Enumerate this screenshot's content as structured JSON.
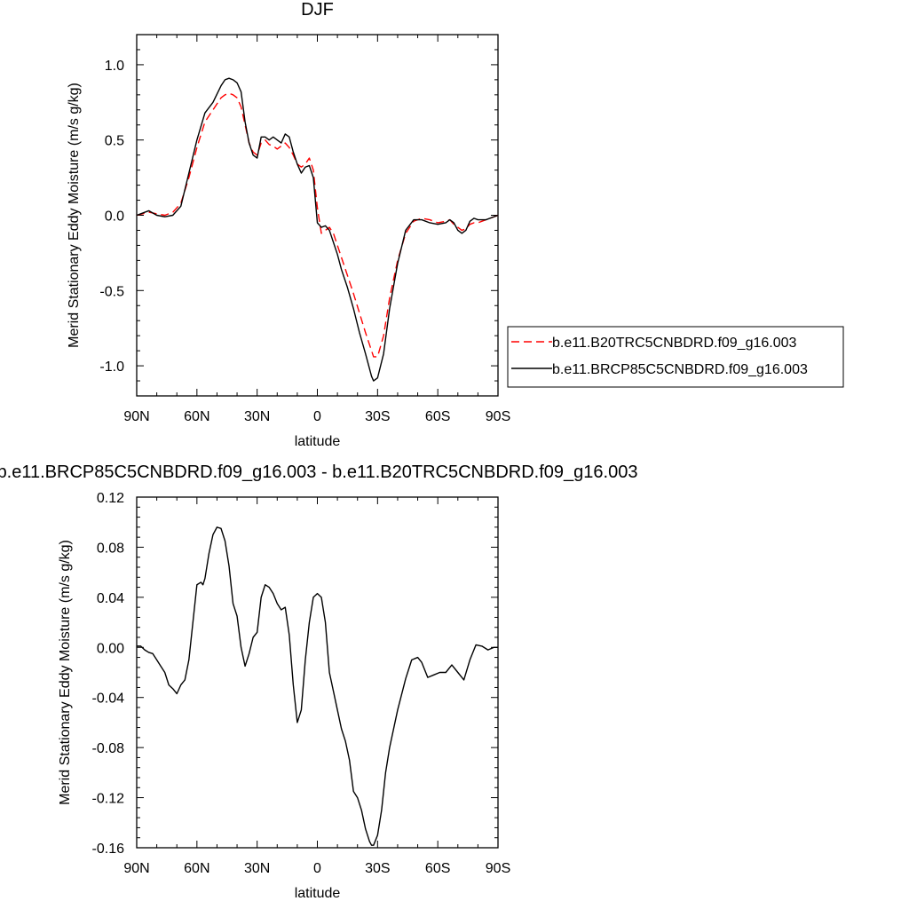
{
  "chart_data": [
    {
      "type": "line",
      "title": "DJF",
      "xlabel": "latitude",
      "ylabel": "Merid Stationary Eddy Moisture (m/s g/kg)",
      "xlim": [
        90,
        -90
      ],
      "ylim": [
        -1.2,
        1.2
      ],
      "x_ticks": [
        90,
        60,
        30,
        0,
        -30,
        -60,
        -90
      ],
      "x_tick_labels": [
        "90N",
        "60N",
        "30N",
        "0",
        "30S",
        "60S",
        "90S"
      ],
      "y_ticks": [
        1.0,
        0.5,
        0.0,
        -0.5,
        -1.0
      ],
      "y_tick_labels": [
        "1.0",
        "0.5",
        "0.0",
        "-0.5",
        "-1.0"
      ],
      "legend_position": "right",
      "series": [
        {
          "name": "b.e11.B20TRC5CNBDRD.f09_g16.003",
          "color": "#ff0000",
          "dash": "dashed",
          "x": [
            90,
            84,
            80,
            76,
            72,
            68,
            64,
            60,
            56,
            52,
            48,
            46,
            44,
            42,
            40,
            38,
            36,
            34,
            32,
            30,
            28,
            26,
            24,
            22,
            20,
            18,
            16,
            14,
            12,
            10,
            8,
            6,
            4,
            2,
            0,
            -2,
            -4,
            -6,
            -8,
            -10,
            -12,
            -15,
            -18,
            -21,
            -24,
            -26,
            -27,
            -28,
            -30,
            -33,
            -36,
            -40,
            -44,
            -48,
            -52,
            -56,
            -60,
            -64,
            -66,
            -68,
            -70,
            -72,
            -74,
            -76,
            -78,
            -80,
            -84,
            -90
          ],
          "y": [
            0.0,
            0.02,
            0.01,
            0.0,
            0.02,
            0.08,
            0.25,
            0.45,
            0.62,
            0.7,
            0.78,
            0.8,
            0.81,
            0.8,
            0.78,
            0.72,
            0.6,
            0.48,
            0.42,
            0.4,
            0.48,
            0.5,
            0.47,
            0.46,
            0.44,
            0.46,
            0.48,
            0.45,
            0.4,
            0.34,
            0.32,
            0.34,
            0.38,
            0.3,
            0.05,
            -0.12,
            -0.1,
            -0.08,
            -0.12,
            -0.2,
            -0.28,
            -0.4,
            -0.52,
            -0.65,
            -0.78,
            -0.86,
            -0.9,
            -0.94,
            -0.94,
            -0.8,
            -0.55,
            -0.3,
            -0.12,
            -0.04,
            -0.02,
            -0.03,
            -0.05,
            -0.04,
            -0.03,
            -0.06,
            -0.08,
            -0.1,
            -0.09,
            -0.06,
            -0.05,
            -0.05,
            -0.03,
            0.0
          ]
        },
        {
          "name": "b.e11.BRCP85C5CNBDRD.f09_g16.003",
          "color": "#000000",
          "dash": "solid",
          "x": [
            90,
            84,
            80,
            76,
            72,
            68,
            64,
            60,
            56,
            52,
            48,
            46,
            44,
            42,
            40,
            38,
            36,
            34,
            32,
            30,
            28,
            26,
            24,
            22,
            20,
            18,
            16,
            14,
            12,
            10,
            8,
            6,
            4,
            2,
            0,
            -2,
            -4,
            -6,
            -8,
            -10,
            -12,
            -15,
            -18,
            -21,
            -24,
            -26,
            -27,
            -28,
            -30,
            -33,
            -36,
            -40,
            -44,
            -48,
            -52,
            -56,
            -60,
            -64,
            -66,
            -68,
            -70,
            -72,
            -74,
            -76,
            -78,
            -80,
            -84,
            -90
          ],
          "y": [
            0.0,
            0.03,
            0.0,
            -0.01,
            0.0,
            0.06,
            0.28,
            0.5,
            0.68,
            0.75,
            0.86,
            0.9,
            0.91,
            0.9,
            0.88,
            0.82,
            0.62,
            0.48,
            0.4,
            0.38,
            0.52,
            0.52,
            0.5,
            0.52,
            0.5,
            0.48,
            0.54,
            0.52,
            0.42,
            0.34,
            0.28,
            0.32,
            0.33,
            0.25,
            -0.05,
            -0.08,
            -0.07,
            -0.1,
            -0.18,
            -0.26,
            -0.36,
            -0.48,
            -0.62,
            -0.78,
            -0.92,
            -1.02,
            -1.07,
            -1.1,
            -1.08,
            -0.92,
            -0.62,
            -0.32,
            -0.1,
            -0.03,
            -0.03,
            -0.05,
            -0.06,
            -0.05,
            -0.03,
            -0.05,
            -0.1,
            -0.12,
            -0.1,
            -0.04,
            -0.02,
            -0.03,
            -0.03,
            0.0
          ]
        }
      ]
    },
    {
      "type": "line",
      "title": "b.e11.BRCP85C5CNBDRD.f09_g16.003 - b.e11.B20TRC5CNBDRD.f09_g16.003",
      "xlabel": "latitude",
      "ylabel": "Merid Stationary Eddy Moisture (m/s g/kg)",
      "xlim": [
        90,
        -90
      ],
      "ylim": [
        -0.16,
        0.12
      ],
      "x_ticks": [
        90,
        60,
        30,
        0,
        -30,
        -60,
        -90
      ],
      "x_tick_labels": [
        "90N",
        "60N",
        "30N",
        "0",
        "30S",
        "60S",
        "90S"
      ],
      "y_ticks": [
        0.12,
        0.08,
        0.04,
        0.0,
        -0.04,
        -0.08,
        -0.12,
        -0.16
      ],
      "y_tick_labels": [
        "0.12",
        "0.08",
        "0.04",
        "0.00",
        "-0.04",
        "-0.08",
        "-0.12",
        "-0.16"
      ],
      "series": [
        {
          "color": "#000000",
          "dash": "solid",
          "x": [
            90,
            88,
            86,
            84,
            82,
            80,
            78,
            76,
            74,
            72,
            70,
            68,
            66,
            64,
            62,
            60,
            58,
            57,
            56,
            54,
            52,
            50,
            48,
            46,
            44,
            42,
            40,
            38,
            36,
            34,
            32,
            30,
            28,
            26,
            24,
            22,
            20,
            18,
            16,
            14,
            12,
            10,
            8,
            6,
            4,
            2,
            0,
            -2,
            -4,
            -6,
            -8,
            -10,
            -12,
            -14,
            -16,
            -18,
            -20,
            -22,
            -24,
            -26,
            -27,
            -28,
            -30,
            -32,
            -34,
            -36,
            -40,
            -44,
            -47,
            -50,
            -52,
            -55,
            -58,
            -61,
            -64,
            -67,
            -70,
            -73,
            -76,
            -79,
            -82,
            -85,
            -88,
            -90
          ],
          "y": [
            0.001,
            0.001,
            -0.002,
            -0.004,
            -0.005,
            -0.01,
            -0.015,
            -0.02,
            -0.03,
            -0.033,
            -0.037,
            -0.03,
            -0.026,
            -0.01,
            0.02,
            0.05,
            0.052,
            0.05,
            0.055,
            0.075,
            0.09,
            0.096,
            0.095,
            0.085,
            0.065,
            0.035,
            0.025,
            0.0,
            -0.015,
            -0.005,
            0.008,
            0.012,
            0.04,
            0.05,
            0.048,
            0.043,
            0.035,
            0.03,
            0.032,
            0.01,
            -0.03,
            -0.06,
            -0.05,
            -0.01,
            0.02,
            0.04,
            0.043,
            0.04,
            0.02,
            -0.02,
            -0.035,
            -0.05,
            -0.065,
            -0.075,
            -0.09,
            -0.115,
            -0.12,
            -0.13,
            -0.145,
            -0.155,
            -0.158,
            -0.158,
            -0.15,
            -0.13,
            -0.1,
            -0.08,
            -0.05,
            -0.025,
            -0.01,
            -0.008,
            -0.012,
            -0.024,
            -0.022,
            -0.02,
            -0.02,
            -0.014,
            -0.02,
            -0.026,
            -0.01,
            0.002,
            0.001,
            -0.002,
            0.0,
            0.0
          ]
        }
      ]
    }
  ]
}
